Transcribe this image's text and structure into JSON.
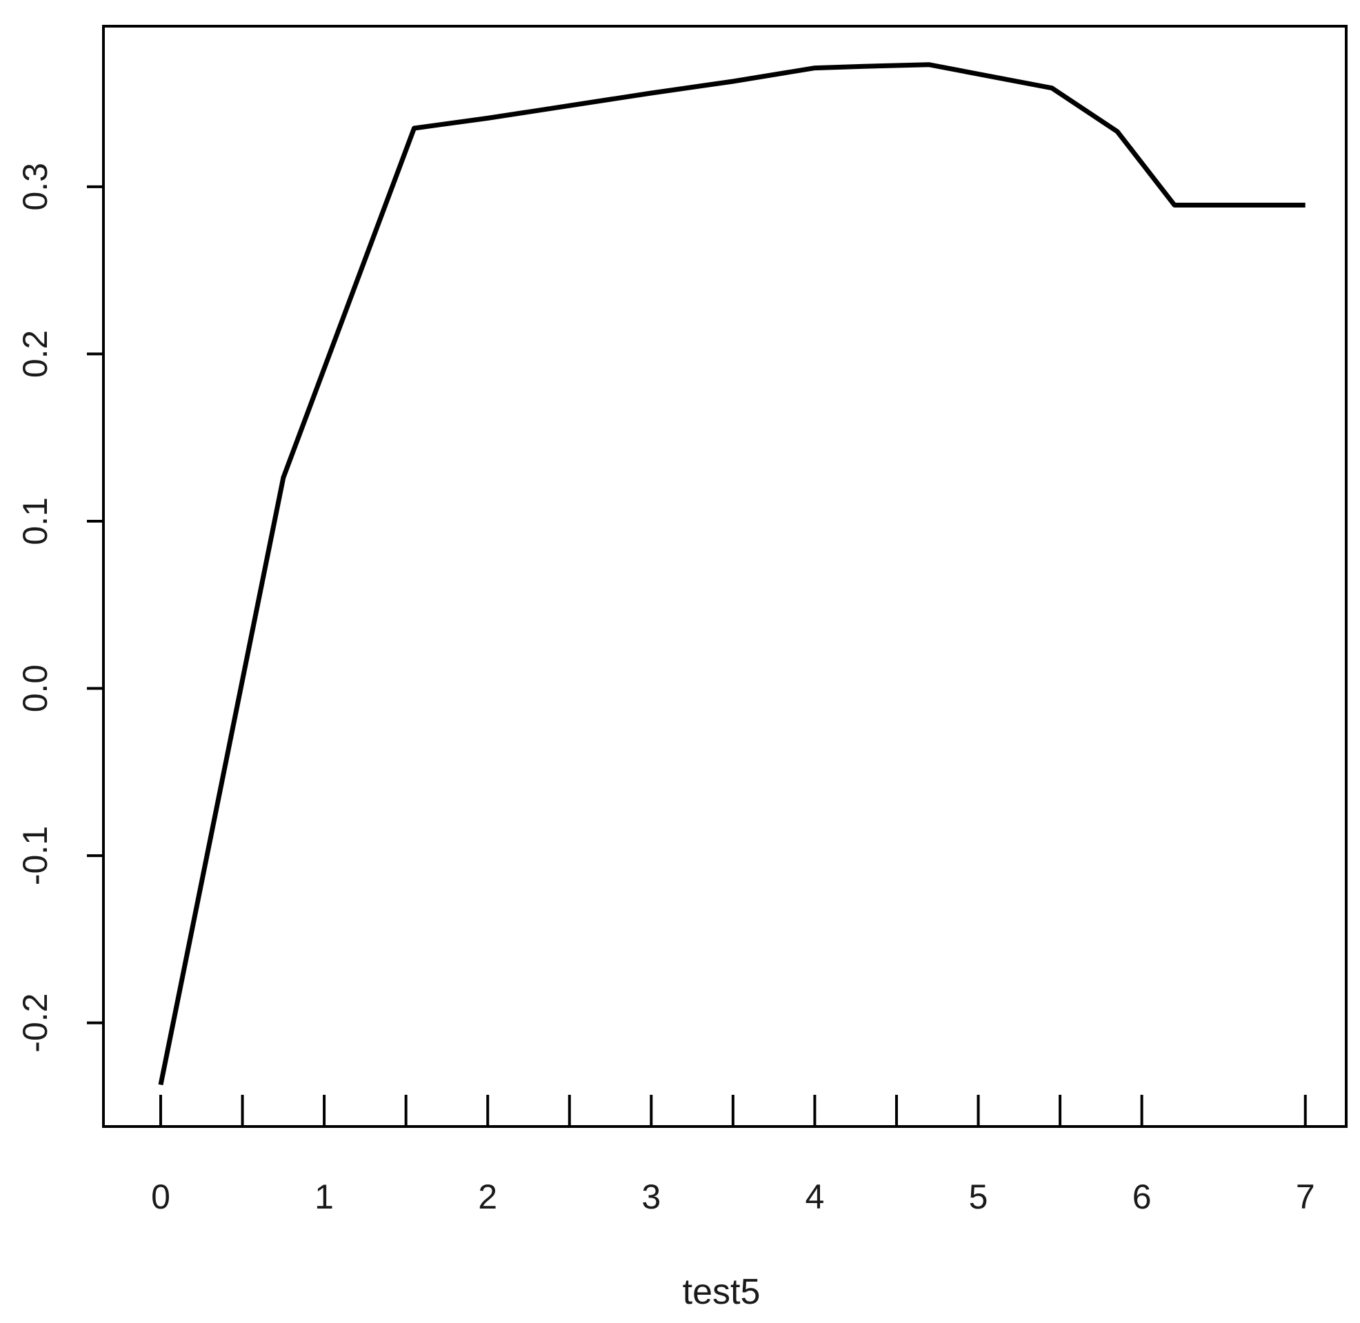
{
  "chart_data": {
    "type": "line",
    "title": "",
    "xlabel": "test5",
    "ylabel": "",
    "xlim": [
      -0.35,
      7.25
    ],
    "ylim": [
      -0.262,
      0.396
    ],
    "x_ticks": [
      0,
      0.5,
      1,
      1.5,
      2,
      2.5,
      3,
      3.5,
      4,
      4.5,
      5,
      5.5,
      6,
      7
    ],
    "x_tick_labels": [
      {
        "value": 0,
        "label": "0"
      },
      {
        "value": 1,
        "label": "1"
      },
      {
        "value": 2,
        "label": "2"
      },
      {
        "value": 3,
        "label": "3"
      },
      {
        "value": 4,
        "label": "4"
      },
      {
        "value": 5,
        "label": "5"
      },
      {
        "value": 6,
        "label": "6"
      },
      {
        "value": 7,
        "label": "7"
      }
    ],
    "y_tick_labels": [
      {
        "value": -0.2,
        "label": "-0.2"
      },
      {
        "value": -0.1,
        "label": "-0.1"
      },
      {
        "value": 0.0,
        "label": "0.0"
      },
      {
        "value": 0.1,
        "label": "0.1"
      },
      {
        "value": 0.2,
        "label": "0.2"
      },
      {
        "value": 0.3,
        "label": "0.3"
      }
    ],
    "grid": false,
    "series": [
      {
        "color": "#000000",
        "x": [
          0,
          0.75,
          1.55,
          2.0,
          3.0,
          3.5,
          4.0,
          4.3,
          4.7,
          5.45,
          5.85,
          6.2,
          7.0
        ],
        "values": [
          -0.237,
          0.126,
          0.335,
          0.341,
          0.356,
          0.363,
          0.371,
          0.372,
          0.373,
          0.359,
          0.333,
          0.289,
          0.289
        ]
      }
    ]
  }
}
